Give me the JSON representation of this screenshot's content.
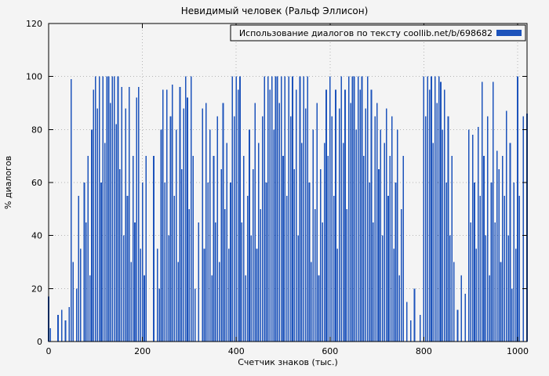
{
  "page": {
    "background": "#f4f4f4"
  },
  "chart_data": {
    "type": "bar",
    "title": "Невидимый человек (Ральф Эллисон)",
    "legend": "Использование диалогов по тексту coollib.net/b/698682",
    "xlabel": "Счетчик знаков (тыс.)",
    "ylabel": "% диалогов",
    "xlim": [
      0,
      1020
    ],
    "ylim": [
      0,
      120
    ],
    "x_ticks": [
      0,
      200,
      400,
      600,
      800,
      1000
    ],
    "y_ticks": [
      0,
      20,
      40,
      60,
      80,
      100,
      120
    ],
    "grid": true,
    "legend_position": "top-right",
    "bar_color": "#1d53bb",
    "axis_color": "#000000",
    "grid_color": "#b5b5b5",
    "x_step": 4,
    "x_unit": "thousand characters",
    "values": [
      17,
      5,
      0,
      0,
      0,
      10,
      0,
      12,
      0,
      8,
      0,
      13,
      99,
      30,
      0,
      20,
      55,
      35,
      0,
      60,
      45,
      70,
      25,
      80,
      95,
      100,
      88,
      100,
      60,
      100,
      75,
      100,
      100,
      90,
      100,
      100,
      82,
      100,
      65,
      96,
      40,
      88,
      55,
      96,
      30,
      70,
      45,
      92,
      96,
      35,
      60,
      25,
      70,
      0,
      0,
      0,
      70,
      0,
      35,
      20,
      80,
      95,
      60,
      95,
      40,
      85,
      97,
      55,
      80,
      30,
      96,
      65,
      88,
      100,
      92,
      50,
      100,
      70,
      20,
      0,
      45,
      0,
      88,
      35,
      90,
      60,
      80,
      25,
      70,
      45,
      85,
      30,
      65,
      90,
      50,
      75,
      35,
      60,
      100,
      85,
      100,
      95,
      100,
      45,
      70,
      25,
      55,
      80,
      40,
      65,
      90,
      35,
      75,
      50,
      85,
      100,
      60,
      100,
      95,
      100,
      80,
      100,
      100,
      90,
      100,
      70,
      100,
      55,
      100,
      85,
      100,
      65,
      95,
      40,
      100,
      75,
      100,
      88,
      100,
      60,
      30,
      80,
      50,
      90,
      25,
      65,
      45,
      75,
      95,
      70,
      100,
      85,
      55,
      95,
      35,
      88,
      100,
      75,
      95,
      50,
      100,
      90,
      100,
      100,
      80,
      100,
      95,
      100,
      70,
      88,
      100,
      60,
      95,
      45,
      85,
      90,
      65,
      80,
      40,
      75,
      88,
      55,
      70,
      85,
      35,
      60,
      80,
      25,
      50,
      70,
      0,
      15,
      0,
      8,
      0,
      20,
      0,
      0,
      10,
      0,
      100,
      85,
      100,
      95,
      100,
      75,
      100,
      90,
      100,
      98,
      80,
      95,
      60,
      85,
      40,
      70,
      30,
      0,
      12,
      0,
      25,
      0,
      18,
      0,
      80,
      45,
      78,
      60,
      35,
      81,
      55,
      98,
      70,
      40,
      85,
      25,
      60,
      98,
      45,
      72,
      65,
      30,
      70,
      55,
      87,
      40,
      75,
      20,
      60,
      35,
      100,
      55,
      0,
      85,
      0,
      86
    ]
  }
}
